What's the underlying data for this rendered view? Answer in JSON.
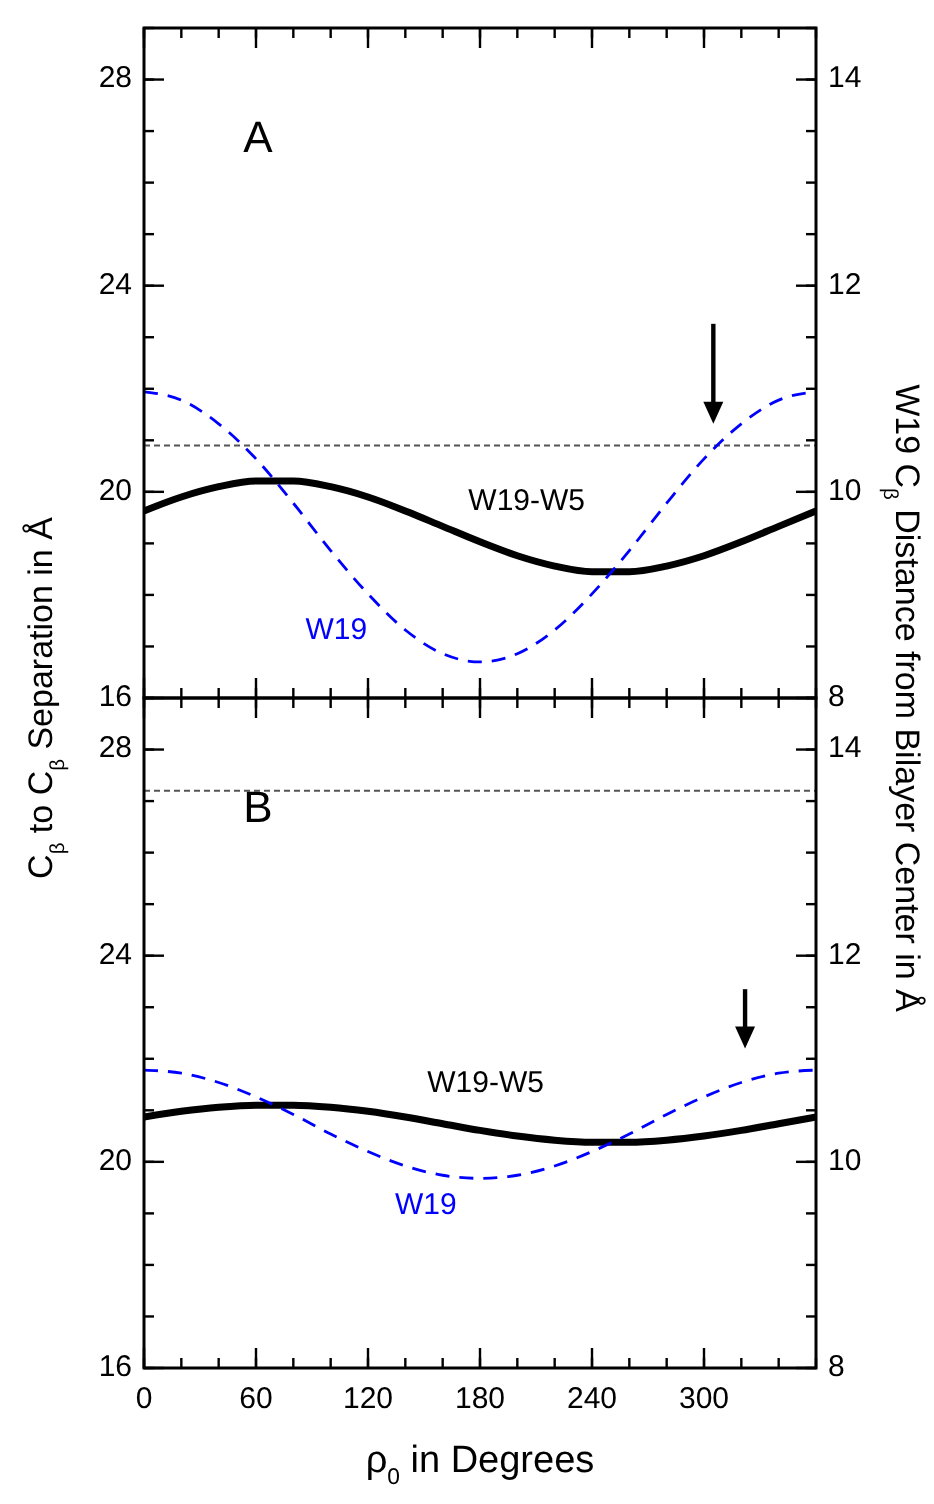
{
  "chart_data": [
    {
      "type": "line",
      "annotations": [
        "A"
      ],
      "ylabel": "C$_{β}$ to C$_{β}$ Separation in Å",
      "y2label": "W19 C$_{β}$ Distance from Bilayer Center in Å",
      "tick_labels": "y",
      "x": [
        0,
        20,
        40,
        60,
        80,
        100,
        120,
        140,
        160,
        180,
        200,
        220,
        240,
        260,
        280,
        300,
        320,
        340,
        360
      ],
      "xlim": [
        0,
        360
      ],
      "xticks": [
        0,
        60,
        120,
        180,
        240,
        300
      ],
      "ylim": [
        16,
        29
      ],
      "yticks": [
        16,
        20,
        24,
        28
      ],
      "y2lim": [
        8,
        14.5
      ],
      "y2ticks": [
        8,
        10,
        12,
        14
      ],
      "ref_lines": [
        {
          "axis": "y",
          "value": 20.9,
          "color": "#555555",
          "line_style": "dashed"
        }
      ],
      "series": [
        {
          "name": "W19-W5",
          "color": "#000000",
          "line_style": "solid",
          "values": [
            19.63,
            19.9,
            20.1,
            20.21,
            20.21,
            20.1,
            19.9,
            19.63,
            19.33,
            19.03,
            18.76,
            18.56,
            18.45,
            18.45,
            18.56,
            18.76,
            19.03,
            19.33,
            19.63
          ]
        },
        {
          "name": "W19",
          "color": "#0000ff",
          "line_style": "dashed",
          "axis": "y2",
          "values": [
            10.97,
            10.89,
            10.66,
            10.32,
            9.89,
            9.43,
            9.01,
            8.66,
            8.43,
            8.35,
            8.43,
            8.66,
            9.01,
            9.43,
            9.89,
            10.32,
            10.66,
            10.89,
            10.97
          ]
        }
      ]
    },
    {
      "type": "line",
      "annotations": [
        "B"
      ],
      "xlabel": "ρ$_{0}$ in Degrees",
      "x": [
        0,
        20,
        40,
        60,
        80,
        100,
        120,
        140,
        160,
        180,
        200,
        220,
        240,
        260,
        280,
        300,
        320,
        340,
        360
      ],
      "xlim": [
        0,
        360
      ],
      "xticks": [
        0,
        60,
        120,
        180,
        240,
        300
      ],
      "ylim": [
        16,
        29
      ],
      "yticks": [
        16,
        20,
        24,
        28
      ],
      "y2lim": [
        8,
        14.5
      ],
      "y2ticks": [
        8,
        10,
        12,
        14
      ],
      "ref_lines": [
        {
          "axis": "y",
          "value": 27.2,
          "color": "#555555",
          "line_style": "dashed"
        }
      ],
      "series": [
        {
          "name": "W19-W5",
          "color": "#000000",
          "line_style": "solid",
          "values": [
            20.87,
            20.98,
            21.06,
            21.1,
            21.1,
            21.06,
            20.98,
            20.87,
            20.74,
            20.61,
            20.5,
            20.42,
            20.38,
            20.38,
            20.42,
            20.5,
            20.61,
            20.74,
            20.87
          ]
        },
        {
          "name": "W19",
          "color": "#0000ff",
          "line_style": "dashed",
          "axis": "y2",
          "values": [
            10.89,
            10.86,
            10.77,
            10.63,
            10.46,
            10.27,
            10.1,
            9.96,
            9.87,
            9.84,
            9.87,
            9.96,
            10.1,
            10.27,
            10.46,
            10.63,
            10.77,
            10.86,
            10.89
          ]
        }
      ]
    }
  ]
}
